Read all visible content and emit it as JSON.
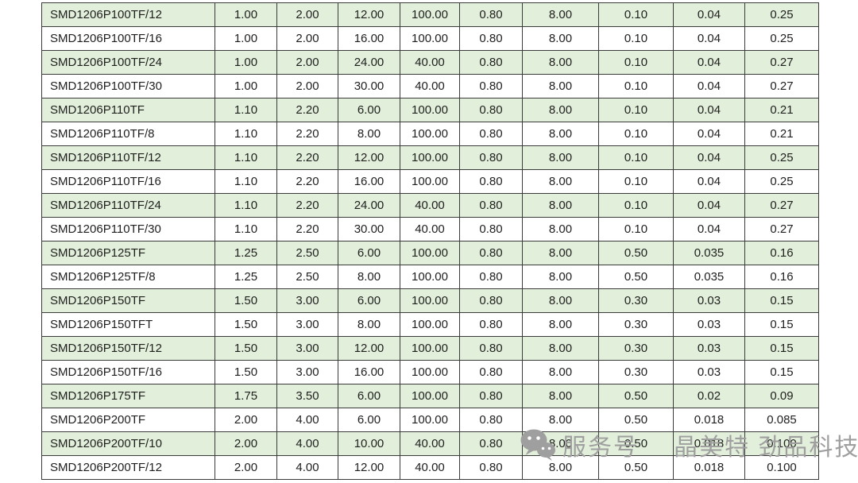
{
  "table": {
    "rows": [
      {
        "part": "SMD1206P100TF/12",
        "values": [
          "1.00",
          "2.00",
          "12.00",
          "100.00",
          "0.80",
          "8.00",
          "0.10",
          "0.04",
          "0.25"
        ]
      },
      {
        "part": "SMD1206P100TF/16",
        "values": [
          "1.00",
          "2.00",
          "16.00",
          "100.00",
          "0.80",
          "8.00",
          "0.10",
          "0.04",
          "0.25"
        ]
      },
      {
        "part": "SMD1206P100TF/24",
        "values": [
          "1.00",
          "2.00",
          "24.00",
          "40.00",
          "0.80",
          "8.00",
          "0.10",
          "0.04",
          "0.27"
        ]
      },
      {
        "part": "SMD1206P100TF/30",
        "values": [
          "1.00",
          "2.00",
          "30.00",
          "40.00",
          "0.80",
          "8.00",
          "0.10",
          "0.04",
          "0.27"
        ]
      },
      {
        "part": "SMD1206P110TF",
        "values": [
          "1.10",
          "2.20",
          "6.00",
          "100.00",
          "0.80",
          "8.00",
          "0.10",
          "0.04",
          "0.21"
        ]
      },
      {
        "part": "SMD1206P110TF/8",
        "values": [
          "1.10",
          "2.20",
          "8.00",
          "100.00",
          "0.80",
          "8.00",
          "0.10",
          "0.04",
          "0.21"
        ]
      },
      {
        "part": "SMD1206P110TF/12",
        "values": [
          "1.10",
          "2.20",
          "12.00",
          "100.00",
          "0.80",
          "8.00",
          "0.10",
          "0.04",
          "0.25"
        ]
      },
      {
        "part": "SMD1206P110TF/16",
        "values": [
          "1.10",
          "2.20",
          "16.00",
          "100.00",
          "0.80",
          "8.00",
          "0.10",
          "0.04",
          "0.25"
        ]
      },
      {
        "part": "SMD1206P110TF/24",
        "values": [
          "1.10",
          "2.20",
          "24.00",
          "40.00",
          "0.80",
          "8.00",
          "0.10",
          "0.04",
          "0.27"
        ]
      },
      {
        "part": "SMD1206P110TF/30",
        "values": [
          "1.10",
          "2.20",
          "30.00",
          "40.00",
          "0.80",
          "8.00",
          "0.10",
          "0.04",
          "0.27"
        ]
      },
      {
        "part": "SMD1206P125TF",
        "values": [
          "1.25",
          "2.50",
          "6.00",
          "100.00",
          "0.80",
          "8.00",
          "0.50",
          "0.035",
          "0.16"
        ]
      },
      {
        "part": "SMD1206P125TF/8",
        "values": [
          "1.25",
          "2.50",
          "8.00",
          "100.00",
          "0.80",
          "8.00",
          "0.50",
          "0.035",
          "0.16"
        ]
      },
      {
        "part": "SMD1206P150TF",
        "values": [
          "1.50",
          "3.00",
          "6.00",
          "100.00",
          "0.80",
          "8.00",
          "0.30",
          "0.03",
          "0.15"
        ]
      },
      {
        "part": "SMD1206P150TFT",
        "values": [
          "1.50",
          "3.00",
          "8.00",
          "100.00",
          "0.80",
          "8.00",
          "0.30",
          "0.03",
          "0.15"
        ]
      },
      {
        "part": "SMD1206P150TF/12",
        "values": [
          "1.50",
          "3.00",
          "12.00",
          "100.00",
          "0.80",
          "8.00",
          "0.30",
          "0.03",
          "0.15"
        ]
      },
      {
        "part": "SMD1206P150TF/16",
        "values": [
          "1.50",
          "3.00",
          "16.00",
          "100.00",
          "0.80",
          "8.00",
          "0.30",
          "0.03",
          "0.15"
        ]
      },
      {
        "part": "SMD1206P175TF",
        "values": [
          "1.75",
          "3.50",
          "6.00",
          "100.00",
          "0.80",
          "8.00",
          "0.50",
          "0.02",
          "0.09"
        ]
      },
      {
        "part": "SMD1206P200TF",
        "values": [
          "2.00",
          "4.00",
          "6.00",
          "100.00",
          "0.80",
          "8.00",
          "0.50",
          "0.018",
          "0.085"
        ]
      },
      {
        "part": "SMD1206P200TF/10",
        "values": [
          "2.00",
          "4.00",
          "10.00",
          "40.00",
          "0.80",
          "8.00",
          "0.50",
          "0.018",
          "0.100"
        ]
      },
      {
        "part": "SMD1206P200TF/12",
        "values": [
          "2.00",
          "4.00",
          "12.00",
          "40.00",
          "0.80",
          "8.00",
          "0.50",
          "0.018",
          "0.100"
        ]
      }
    ]
  },
  "watermark": {
    "icon": "wechat-icon",
    "label": "服务号",
    "brand": "晶美特 劲品科技"
  },
  "colors": {
    "row_green": "#e2efda",
    "row_white": "#ffffff",
    "border": "#3a3a3a",
    "text": "#1f1f1f",
    "watermark": "#9f9f9f"
  }
}
